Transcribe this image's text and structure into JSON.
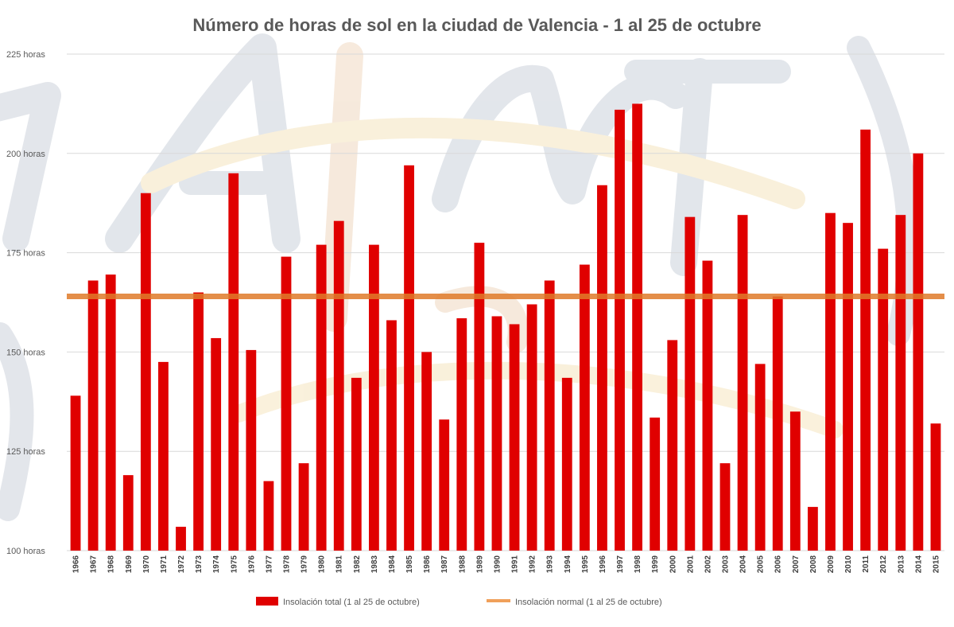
{
  "chart_data": {
    "type": "bar",
    "title": "Número de horas de sol en la ciudad de Valencia - 1 al 25 de octubre",
    "xlabel": "",
    "ylabel": "",
    "ylim": [
      100,
      225
    ],
    "yticks": [
      100,
      125,
      150,
      175,
      200,
      225
    ],
    "ytick_labels": [
      "100 horas",
      "125 horas",
      "150 horas",
      "175 horas",
      "200 horas",
      "225 horas"
    ],
    "grid": true,
    "legend_position": "bottom",
    "categories": [
      "1966",
      "1967",
      "1968",
      "1969",
      "1970",
      "1971",
      "1972",
      "1973",
      "1974",
      "1975",
      "1976",
      "1977",
      "1978",
      "1979",
      "1980",
      "1981",
      "1982",
      "1983",
      "1984",
      "1985",
      "1986",
      "1987",
      "1988",
      "1989",
      "1990",
      "1991",
      "1992",
      "1993",
      "1994",
      "1995",
      "1996",
      "1997",
      "1998",
      "1999",
      "2000",
      "2001",
      "2002",
      "2003",
      "2004",
      "2005",
      "2006",
      "2007",
      "2008",
      "2009",
      "2010",
      "2011",
      "2012",
      "2013",
      "2014",
      "2015"
    ],
    "series": [
      {
        "name": "Insolación total (1 al 25 de octubre)",
        "kind": "bar",
        "color": "#e00000",
        "values": [
          139,
          168,
          169.5,
          119,
          190,
          147.5,
          106,
          165,
          153.5,
          195,
          150.5,
          117.5,
          174,
          122,
          177,
          183,
          143.5,
          177,
          158,
          197,
          150,
          133,
          158.5,
          177.5,
          159,
          157,
          162,
          168,
          143.5,
          172,
          192,
          211,
          212.5,
          133.5,
          153,
          184,
          173,
          122,
          184.5,
          147,
          164,
          135,
          111,
          185,
          182.5,
          206,
          176,
          184.5,
          200,
          132
        ]
      },
      {
        "name": "Insolación normal (1 al 25 de octubre)",
        "kind": "line",
        "color": "#f0a05a",
        "value": 164
      }
    ]
  }
}
